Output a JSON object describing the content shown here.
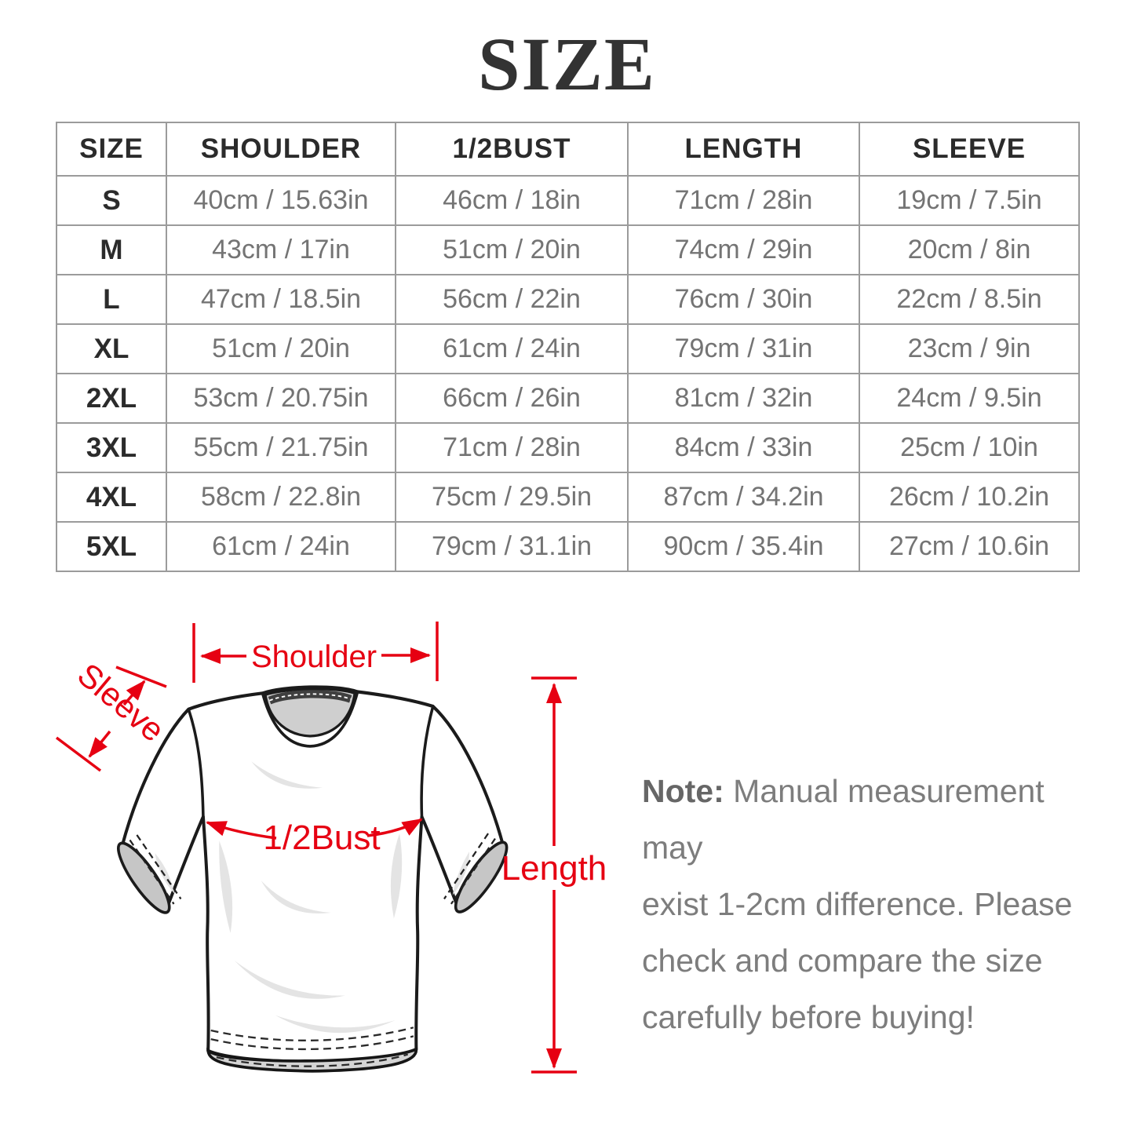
{
  "title": "SIZE",
  "table": {
    "headers": [
      "SIZE",
      "SHOULDER",
      "1/2BUST",
      "LENGTH",
      "SLEEVE"
    ],
    "rows": [
      [
        "S",
        "40cm / 15.63in",
        "46cm / 18in",
        "71cm / 28in",
        "19cm / 7.5in"
      ],
      [
        "M",
        "43cm / 17in",
        "51cm / 20in",
        "74cm / 29in",
        "20cm / 8in"
      ],
      [
        "L",
        "47cm / 18.5in",
        "56cm / 22in",
        "76cm / 30in",
        "22cm / 8.5in"
      ],
      [
        "XL",
        "51cm / 20in",
        "61cm / 24in",
        "79cm / 31in",
        "23cm / 9in"
      ],
      [
        "2XL",
        "53cm / 20.75in",
        "66cm / 26in",
        "81cm / 32in",
        "24cm / 9.5in"
      ],
      [
        "3XL",
        "55cm / 21.75in",
        "71cm / 28in",
        "84cm / 33in",
        "25cm / 10in"
      ],
      [
        "4XL",
        "58cm / 22.8in",
        "75cm / 29.5in",
        "87cm / 34.2in",
        "26cm / 10.2in"
      ],
      [
        "5XL",
        "61cm / 24in",
        "79cm / 31.1in",
        "90cm / 35.4in",
        "27cm / 10.6in"
      ]
    ]
  },
  "diagram": {
    "labels": {
      "shoulder": "Shoulder",
      "sleeve": "Sleeve",
      "bust": "1/2Bust",
      "length": "Length"
    },
    "accent_color": "#e60012"
  },
  "note": {
    "prefix": "Note:",
    "lines": [
      "Manual measurement may",
      "exist 1-2cm difference. Please",
      "check and compare the size",
      "carefully before buying!"
    ]
  }
}
